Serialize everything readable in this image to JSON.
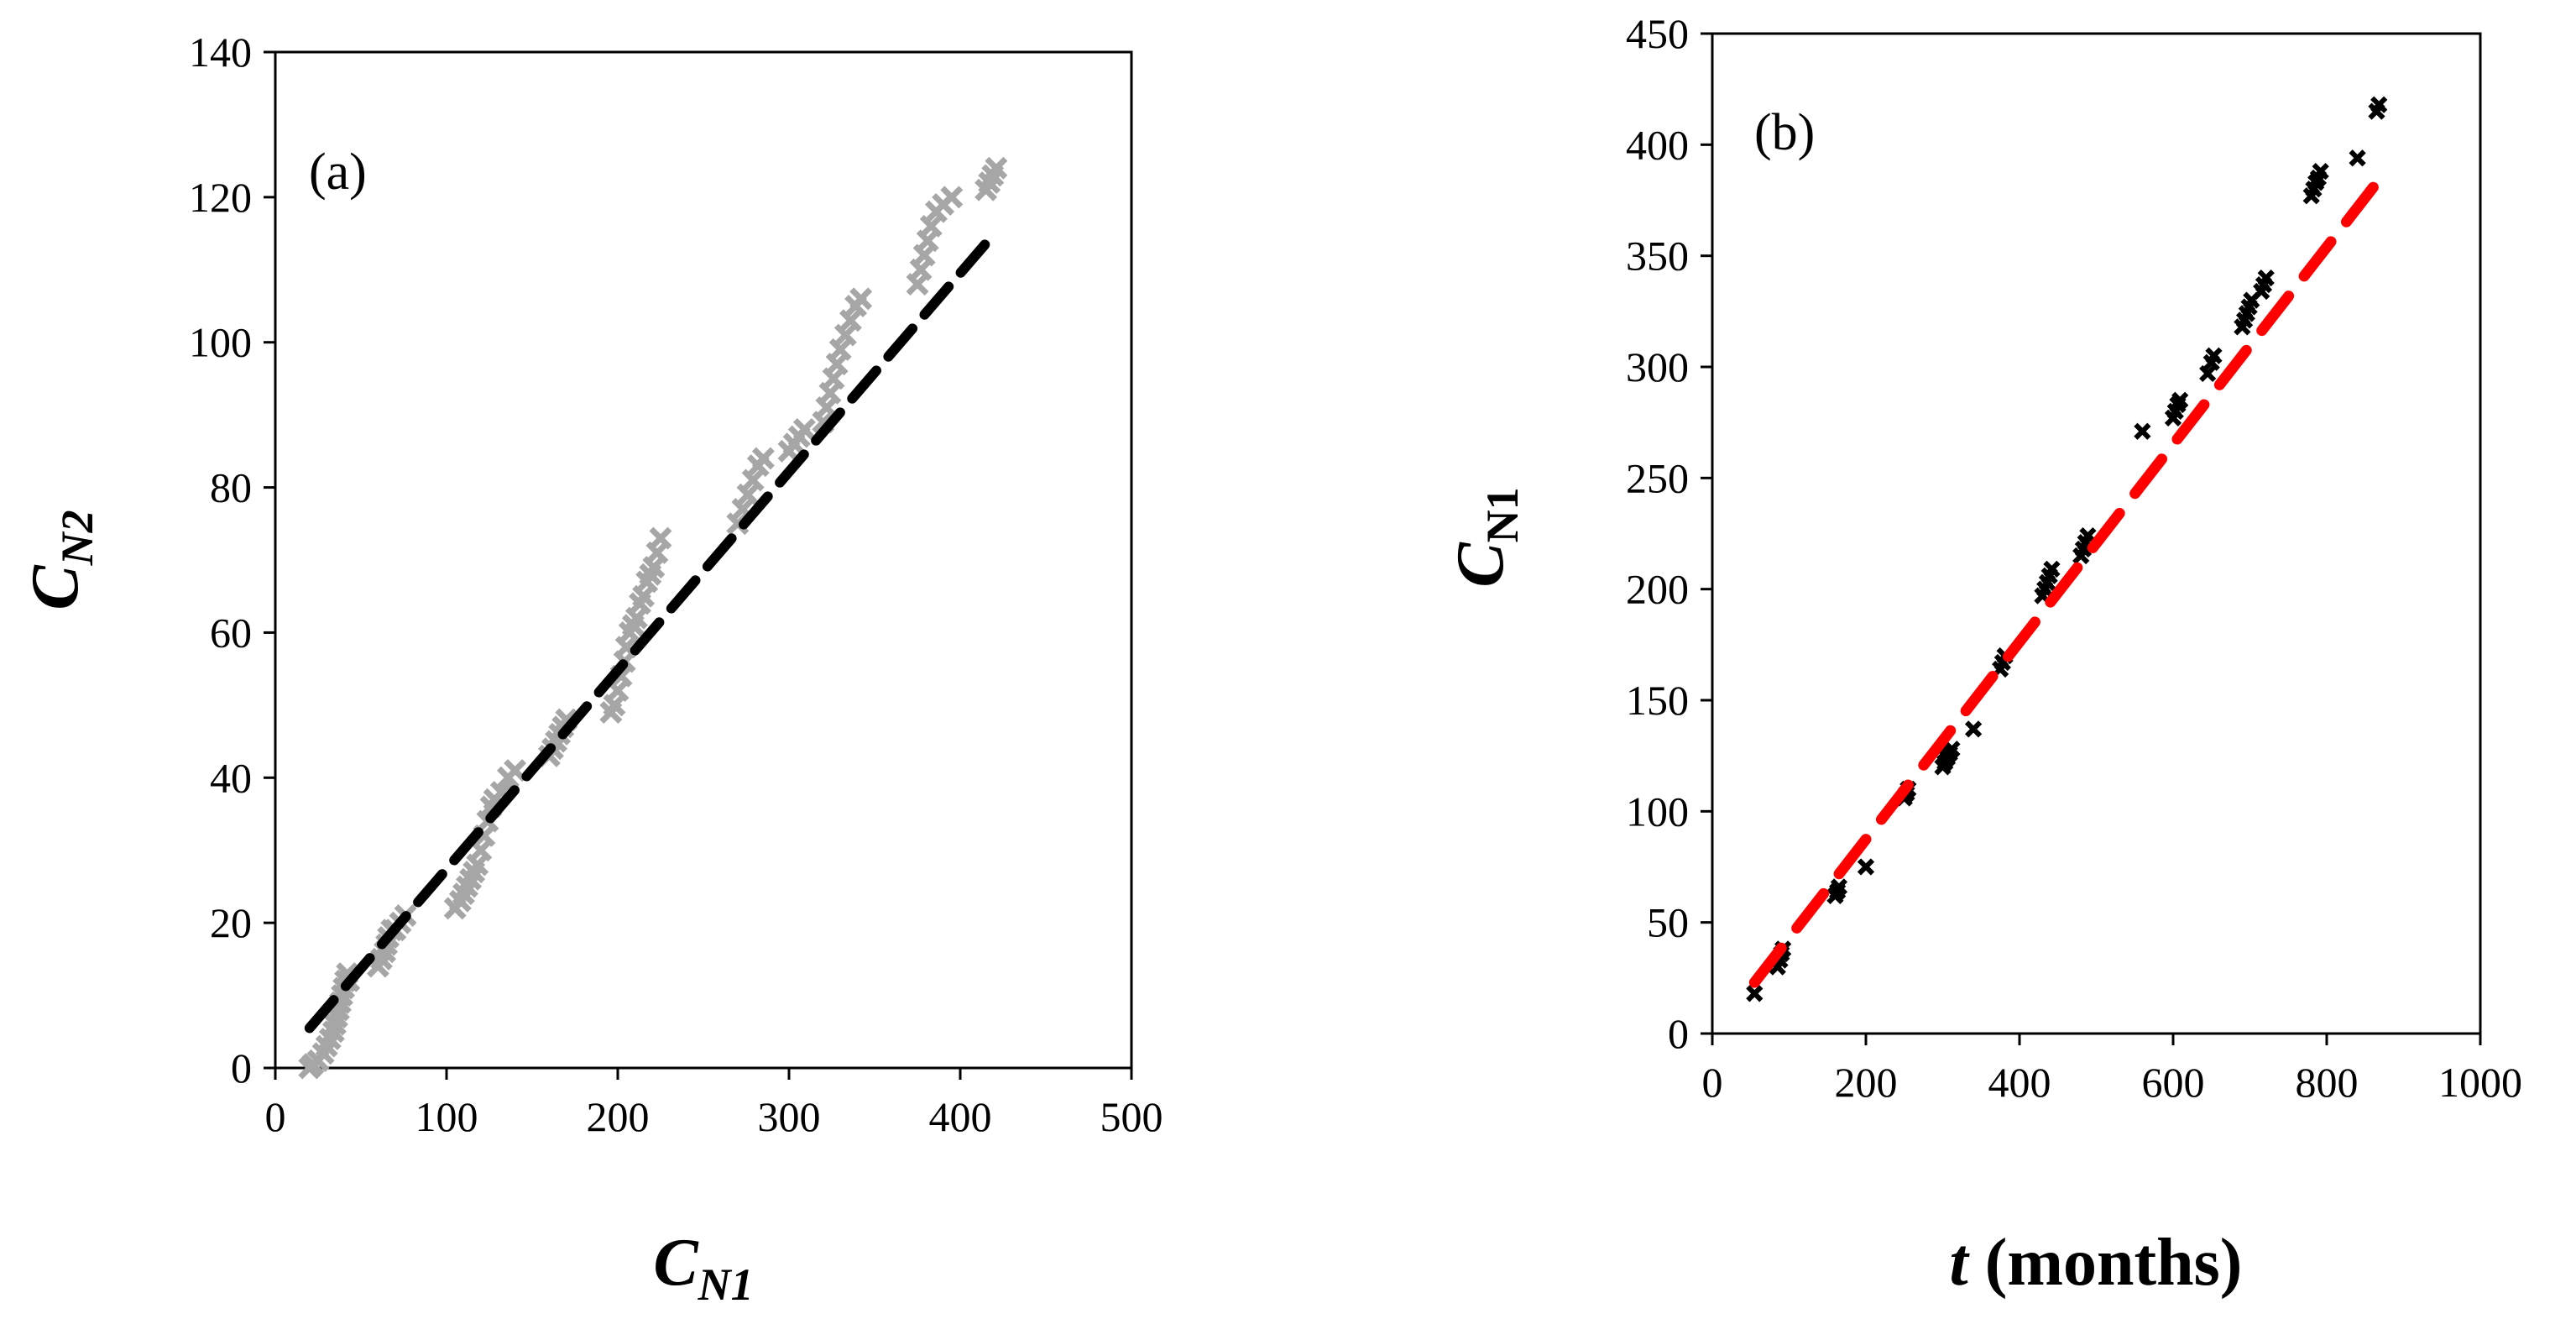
{
  "chart_data": [
    {
      "type": "scatter",
      "panel_label": "(a)",
      "xlabel": {
        "main": "C",
        "sub": "N1"
      },
      "ylabel": {
        "main": "C",
        "sub": "N2"
      },
      "xlim": [
        0,
        500
      ],
      "ylim": [
        0,
        140
      ],
      "x_ticks": [
        0,
        100,
        200,
        300,
        400,
        500
      ],
      "y_ticks": [
        0,
        20,
        40,
        60,
        80,
        100,
        120,
        140
      ],
      "grid": false,
      "series": [
        {
          "name": "data",
          "kind": "markers",
          "marker": "x",
          "color": "#a6a6a6",
          "points": [
            [
              20,
              0
            ],
            [
              22,
              0.5
            ],
            [
              25,
              1
            ],
            [
              28,
              2
            ],
            [
              30,
              3
            ],
            [
              32,
              4
            ],
            [
              34,
              5
            ],
            [
              35,
              6
            ],
            [
              36,
              7
            ],
            [
              37,
              8
            ],
            [
              38,
              9
            ],
            [
              39,
              10
            ],
            [
              40,
              11
            ],
            [
              41,
              12
            ],
            [
              42,
              13
            ],
            [
              43,
              12
            ],
            [
              60,
              14
            ],
            [
              62,
              15
            ],
            [
              64,
              16
            ],
            [
              65,
              17
            ],
            [
              66,
              18
            ],
            [
              68,
              19
            ],
            [
              70,
              19
            ],
            [
              73,
              20
            ],
            [
              76,
              21
            ],
            [
              105,
              22
            ],
            [
              108,
              23
            ],
            [
              110,
              24
            ],
            [
              112,
              25
            ],
            [
              114,
              26
            ],
            [
              116,
              27
            ],
            [
              118,
              28
            ],
            [
              120,
              30
            ],
            [
              122,
              32
            ],
            [
              124,
              34
            ],
            [
              126,
              36
            ],
            [
              128,
              37
            ],
            [
              132,
              38
            ],
            [
              136,
              40
            ],
            [
              140,
              41
            ],
            [
              160,
              43
            ],
            [
              162,
              44
            ],
            [
              164,
              45
            ],
            [
              166,
              46
            ],
            [
              168,
              47
            ],
            [
              170,
              48
            ],
            [
              196,
              49
            ],
            [
              198,
              50
            ],
            [
              200,
              52
            ],
            [
              202,
              54
            ],
            [
              204,
              56
            ],
            [
              205,
              58
            ],
            [
              207,
              60
            ],
            [
              209,
              61
            ],
            [
              211,
              62
            ],
            [
              213,
              64
            ],
            [
              215,
              65
            ],
            [
              217,
              67
            ],
            [
              219,
              68
            ],
            [
              221,
              69
            ],
            [
              223,
              71
            ],
            [
              225,
              73
            ],
            [
              270,
              75
            ],
            [
              273,
              77
            ],
            [
              276,
              79
            ],
            [
              279,
              81
            ],
            [
              282,
              83
            ],
            [
              285,
              84
            ],
            [
              300,
              85
            ],
            [
              303,
              86
            ],
            [
              306,
              87
            ],
            [
              309,
              88
            ],
            [
              320,
              89
            ],
            [
              322,
              91
            ],
            [
              324,
              93
            ],
            [
              326,
              95
            ],
            [
              328,
              97
            ],
            [
              330,
              99
            ],
            [
              333,
              101
            ],
            [
              336,
              103
            ],
            [
              339,
              105
            ],
            [
              342,
              106
            ],
            [
              375,
              108
            ],
            [
              377,
              110
            ],
            [
              379,
              112
            ],
            [
              381,
              114
            ],
            [
              383,
              116
            ],
            [
              386,
              118
            ],
            [
              390,
              119
            ],
            [
              395,
              120
            ],
            [
              415,
              121
            ],
            [
              417,
              122
            ],
            [
              419,
              123
            ],
            [
              421,
              124
            ]
          ]
        },
        {
          "name": "linear fit",
          "kind": "dashed-line",
          "color": "#000000",
          "points": [
            [
              20,
              5.5
            ],
            [
              420,
              115
            ]
          ]
        }
      ]
    },
    {
      "type": "scatter",
      "panel_label": "(b)",
      "xlabel": {
        "main": "t",
        "rest": " (months)"
      },
      "ylabel": {
        "main": "C",
        "sub": "N1"
      },
      "xlim": [
        0,
        1000
      ],
      "ylim": [
        0,
        450
      ],
      "x_ticks": [
        0,
        200,
        400,
        600,
        800,
        1000
      ],
      "y_ticks": [
        0,
        50,
        100,
        150,
        200,
        250,
        300,
        350,
        400,
        450
      ],
      "grid": false,
      "series": [
        {
          "name": "data",
          "kind": "markers",
          "marker": "x",
          "color": "#000000",
          "points": [
            [
              55,
              18
            ],
            [
              85,
              30
            ],
            [
              88,
              33
            ],
            [
              90,
              36
            ],
            [
              92,
              38
            ],
            [
              160,
              62
            ],
            [
              163,
              64
            ],
            [
              165,
              66
            ],
            [
              200,
              75
            ],
            [
              250,
              106
            ],
            [
              253,
              108
            ],
            [
              255,
              110
            ],
            [
              300,
              120
            ],
            [
              303,
              122
            ],
            [
              306,
              124
            ],
            [
              309,
              126
            ],
            [
              312,
              128
            ],
            [
              340,
              137
            ],
            [
              375,
              164
            ],
            [
              378,
              167
            ],
            [
              381,
              170
            ],
            [
              430,
              197
            ],
            [
              433,
              200
            ],
            [
              436,
              203
            ],
            [
              439,
              206
            ],
            [
              442,
              209
            ],
            [
              480,
              215
            ],
            [
              483,
              218
            ],
            [
              486,
              221
            ],
            [
              489,
              224
            ],
            [
              560,
              271
            ],
            [
              600,
              277
            ],
            [
              603,
              280
            ],
            [
              606,
              283
            ],
            [
              609,
              285
            ],
            [
              645,
              297
            ],
            [
              650,
              302
            ],
            [
              653,
              305
            ],
            [
              690,
              318
            ],
            [
              693,
              321
            ],
            [
              696,
              324
            ],
            [
              699,
              327
            ],
            [
              702,
              330
            ],
            [
              715,
              334
            ],
            [
              718,
              337
            ],
            [
              721,
              340
            ],
            [
              780,
              377
            ],
            [
              783,
              380
            ],
            [
              786,
              383
            ],
            [
              789,
              385
            ],
            [
              792,
              388
            ],
            [
              840,
              394
            ],
            [
              865,
              415
            ],
            [
              868,
              418
            ]
          ]
        },
        {
          "name": "linear fit",
          "kind": "dashed-line",
          "color": "#ff0000",
          "points": [
            [
              55,
              23
            ],
            [
              870,
              385
            ]
          ]
        }
      ]
    }
  ]
}
